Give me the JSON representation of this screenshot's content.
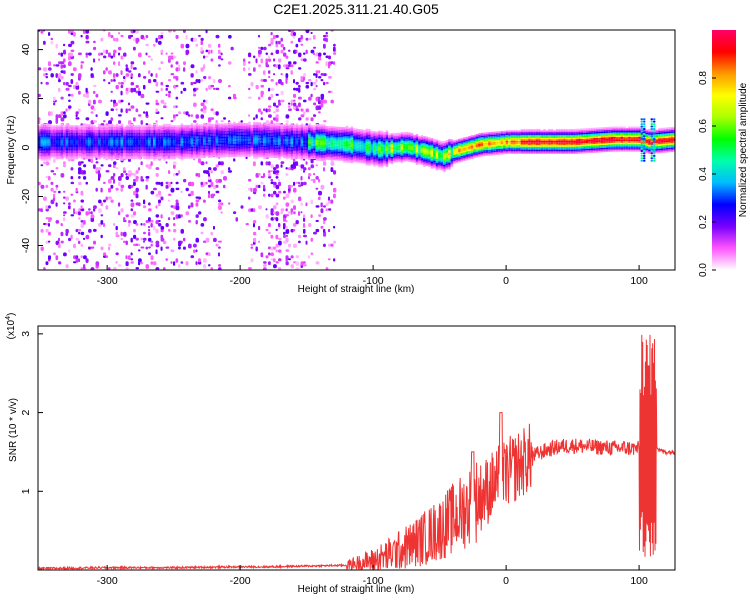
{
  "title": "C2E1.2025.311.21.40.G05",
  "chart_data": [
    {
      "type": "heatmap",
      "description": "Spectrogram: frequency vs height of straight line, colored by normalized spectral amplitude",
      "xlabel": "Height of straight line (km)",
      "ylabel": "Frequency (Hz)",
      "xlim": [
        -352,
        127
      ],
      "ylim": [
        -50,
        48
      ],
      "xticks": [
        -300,
        -200,
        -100,
        0,
        100
      ],
      "yticks": [
        -40,
        -20,
        0,
        20,
        40
      ],
      "colorbar": {
        "label": "Normalized spectral amplitude",
        "range": [
          0,
          1
        ],
        "ticks": [
          0.0,
          0.2,
          0.4,
          0.6,
          0.8
        ],
        "colors": [
          "#ffffff",
          "#ff55ff",
          "#7700ff",
          "#0000ff",
          "#00bbff",
          "#00ffaa",
          "#00ff00",
          "#aaff00",
          "#ffff00",
          "#ff9900",
          "#ff0000",
          "#ff0066"
        ]
      },
      "ridge": [
        [
          -352,
          2
        ],
        [
          -300,
          2
        ],
        [
          -250,
          2
        ],
        [
          -200,
          3
        ],
        [
          -150,
          2
        ],
        [
          -120,
          1
        ],
        [
          -95,
          -1
        ],
        [
          -75,
          0
        ],
        [
          -60,
          -2
        ],
        [
          -48,
          -4
        ],
        [
          -40,
          -2
        ],
        [
          -20,
          1
        ],
        [
          0,
          2
        ],
        [
          50,
          2
        ],
        [
          80,
          3
        ],
        [
          100,
          3
        ],
        [
          107,
          2
        ],
        [
          127,
          3
        ]
      ]
    },
    {
      "type": "line",
      "xlabel": "Height of straight line (km)",
      "ylabel": "SNR (10 * v/v)",
      "yscale_label": "(x10",
      "yscale_exp": "4",
      "ylabel_full": "SNR (10 * v/v) (x10^4)",
      "xlim": [
        -352,
        127
      ],
      "ylim": [
        0,
        3.1
      ],
      "xticks": [
        -300,
        -200,
        -100,
        0,
        100
      ],
      "yticks": [
        1,
        2,
        3
      ],
      "series": [
        {
          "name": "SNR",
          "color": "#ee3333",
          "x": [
            -352,
            -300,
            -250,
            -200,
            -180,
            -150,
            -120,
            -100,
            -90,
            -80,
            -70,
            -60,
            -50,
            -40,
            -30,
            -20,
            -10,
            0,
            10,
            20,
            30,
            40,
            50,
            60,
            70,
            80,
            90,
            100,
            104,
            106,
            108,
            110,
            112,
            115,
            120,
            127
          ],
          "y": [
            0.02,
            0.03,
            0.03,
            0.04,
            0.04,
            0.05,
            0.06,
            0.12,
            0.18,
            0.25,
            0.33,
            0.42,
            0.52,
            0.65,
            0.78,
            0.92,
            1.08,
            1.22,
            1.34,
            1.45,
            1.52,
            1.57,
            1.58,
            1.57,
            1.56,
            1.55,
            1.55,
            1.54,
            2.5,
            0.2,
            2.8,
            0.3,
            1.6,
            1.52,
            1.5,
            1.5
          ]
        }
      ]
    }
  ]
}
